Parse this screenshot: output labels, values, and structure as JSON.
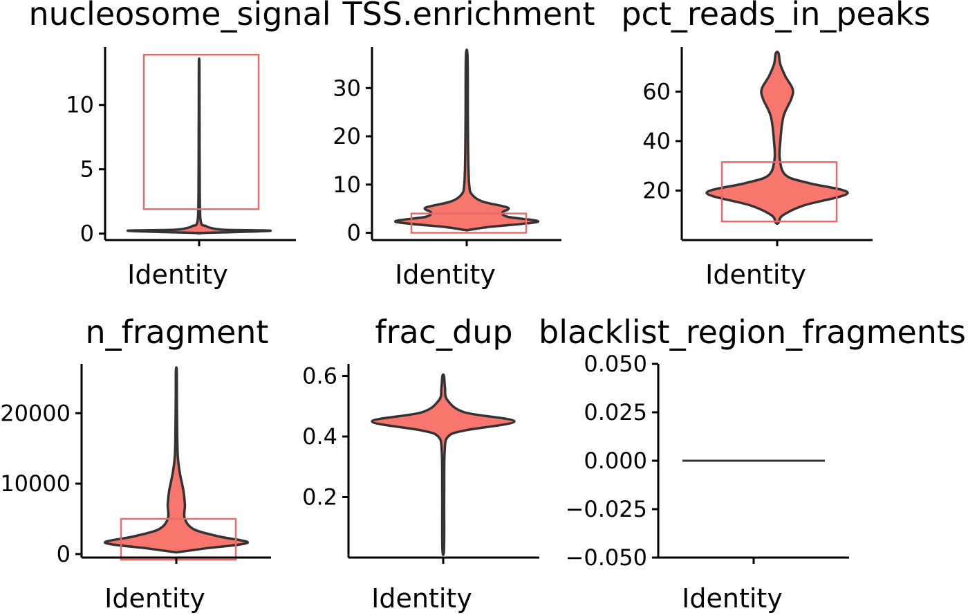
{
  "colors": {
    "violin_fill": "#f8766d",
    "violin_stroke": "#333333",
    "gate_box": "#e86a6a",
    "axis": "#000000"
  },
  "chart_data": [
    {
      "type": "violin",
      "title": "nucleosome_signal",
      "xlabel": "Identity",
      "categories": [
        "Identity"
      ],
      "ylim": [
        -0.5,
        14.5
      ],
      "yticks": [
        0,
        5,
        10
      ],
      "ytick_labels": [
        "0",
        "5",
        "10"
      ],
      "distribution": [
        [
          0.05,
          0.02
        ],
        [
          0.22,
          1.0
        ],
        [
          0.3,
          0.35
        ],
        [
          0.45,
          0.16
        ],
        [
          0.6,
          0.09
        ],
        [
          0.8,
          0.03
        ],
        [
          2,
          0.012
        ],
        [
          6,
          0.007
        ],
        [
          10,
          0.005
        ],
        [
          13.2,
          0.004
        ]
      ],
      "gate": {
        "y_min": 1.9,
        "y_max": 13.9
      }
    },
    {
      "type": "violin",
      "title": "TSS.enrichment",
      "xlabel": "Identity",
      "categories": [
        "Identity"
      ],
      "ylim": [
        -1.5,
        38.5
      ],
      "yticks": [
        0,
        10,
        20,
        30
      ],
      "ytick_labels": [
        "0",
        "10",
        "20",
        "30"
      ],
      "distribution": [
        [
          0.6,
          0.03
        ],
        [
          1.2,
          0.3
        ],
        [
          2.3,
          1.0
        ],
        [
          3.3,
          0.58
        ],
        [
          4.2,
          0.5
        ],
        [
          5.2,
          0.58
        ],
        [
          6.5,
          0.22
        ],
        [
          8,
          0.07
        ],
        [
          10,
          0.035
        ],
        [
          15,
          0.022
        ],
        [
          25,
          0.016
        ],
        [
          36.5,
          0.012
        ]
      ],
      "gate": {
        "y_min": 0,
        "y_max": 4
      }
    },
    {
      "type": "violin",
      "title": "pct_reads_in_peaks",
      "xlabel": "Identity",
      "categories": [
        "Identity"
      ],
      "ylim": [
        0,
        78
      ],
      "yticks": [
        20,
        40,
        60
      ],
      "ytick_labels": [
        "20",
        "40",
        "60"
      ],
      "distribution": [
        [
          7,
          0.02
        ],
        [
          10,
          0.08
        ],
        [
          14,
          0.38
        ],
        [
          19,
          1.0
        ],
        [
          23,
          0.45
        ],
        [
          26,
          0.13
        ],
        [
          32,
          0.04
        ],
        [
          40,
          0.045
        ],
        [
          50,
          0.09
        ],
        [
          57,
          0.2
        ],
        [
          61,
          0.22
        ],
        [
          66,
          0.12
        ],
        [
          71,
          0.045
        ],
        [
          75.5,
          0.02
        ]
      ],
      "gate": {
        "y_min": 7.5,
        "y_max": 31.5
      }
    },
    {
      "type": "violin",
      "title": "n_fragment",
      "xlabel": "Identity",
      "categories": [
        "Identity"
      ],
      "ylim": [
        -500,
        27000
      ],
      "yticks": [
        0,
        10000,
        20000
      ],
      "ytick_labels": [
        "0",
        "10000",
        "20000"
      ],
      "distribution": [
        [
          300,
          0.04
        ],
        [
          800,
          0.4
        ],
        [
          1600,
          1.0
        ],
        [
          2500,
          0.6
        ],
        [
          3500,
          0.25
        ],
        [
          5000,
          0.12
        ],
        [
          7000,
          0.12
        ],
        [
          9000,
          0.1
        ],
        [
          11500,
          0.05
        ],
        [
          14000,
          0.02
        ],
        [
          18000,
          0.012
        ],
        [
          22000,
          0.008
        ],
        [
          26000,
          0.006
        ]
      ],
      "gate": {
        "y_min": -800,
        "y_max": 5000
      }
    },
    {
      "type": "violin",
      "title": "frac_dup",
      "xlabel": "Identity",
      "categories": [
        "Identity"
      ],
      "ylim": [
        0.0,
        0.64
      ],
      "yticks": [
        0.2,
        0.4,
        0.6
      ],
      "ytick_labels": [
        "0.2",
        "0.4",
        "0.6"
      ],
      "distribution": [
        [
          0.03,
          0.012
        ],
        [
          0.2,
          0.014
        ],
        [
          0.35,
          0.02
        ],
        [
          0.4,
          0.07
        ],
        [
          0.42,
          0.3
        ],
        [
          0.45,
          1.0
        ],
        [
          0.48,
          0.3
        ],
        [
          0.52,
          0.06
        ],
        [
          0.56,
          0.025
        ],
        [
          0.6,
          0.012
        ]
      ],
      "gate": null
    },
    {
      "type": "violin",
      "title": "blacklist_region_fragments",
      "xlabel": "Identity",
      "categories": [
        "Identity"
      ],
      "ylim": [
        -0.05,
        0.05
      ],
      "yticks": [
        -0.05,
        -0.025,
        0.0,
        0.025,
        0.05
      ],
      "ytick_labels": [
        "−0.050",
        "−0.025",
        "0.000",
        "0.025",
        "0.050"
      ],
      "constant_value": 0.0,
      "gate": null
    }
  ]
}
